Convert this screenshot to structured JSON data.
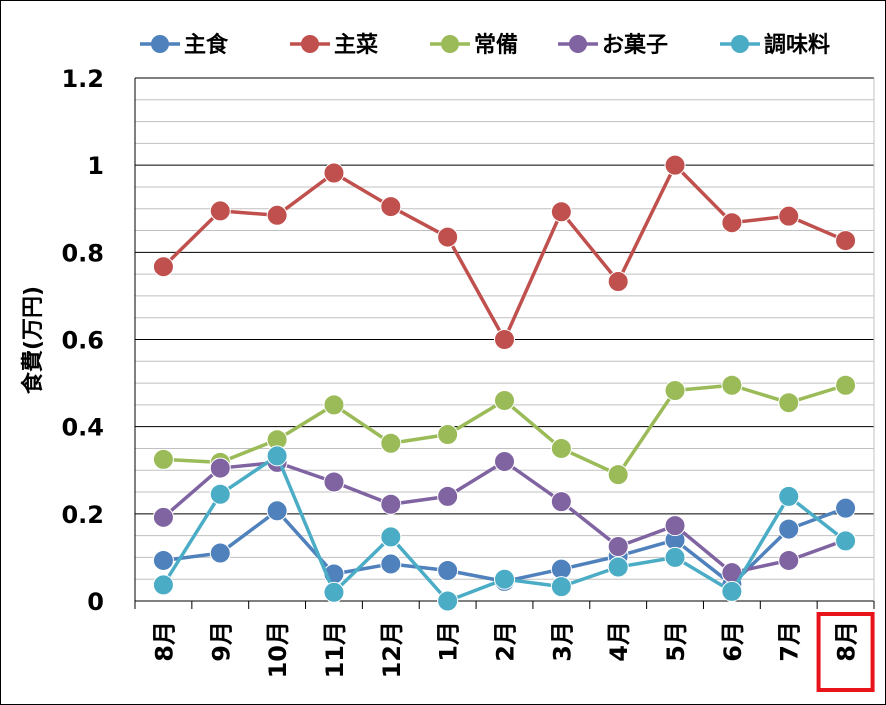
{
  "chart_data": {
    "type": "line",
    "title": "",
    "xlabel": "",
    "ylabel": "食費(万円)",
    "categories": [
      "8月",
      "9月",
      "10月",
      "11月",
      "12月",
      "1月",
      "2月",
      "3月",
      "4月",
      "5月",
      "6月",
      "7月",
      "8月"
    ],
    "ylim": [
      0,
      1.2
    ],
    "yticks": [
      "0",
      "0.2",
      "0.4",
      "0.6",
      "0.8",
      "1",
      "1.2"
    ],
    "grid": true,
    "legend_position": "top",
    "highlighted_category_index": 12,
    "highlight_color": "#e8141b",
    "series": [
      {
        "name": "主食",
        "color": "#4f81bd",
        "values": [
          0.093,
          0.11,
          0.207,
          0.062,
          0.085,
          0.07,
          0.045,
          0.073,
          0.103,
          0.14,
          0.038,
          0.165,
          0.213
        ]
      },
      {
        "name": "主菜",
        "color": "#c0504d",
        "values": [
          0.767,
          0.895,
          0.885,
          0.982,
          0.905,
          0.835,
          0.6,
          0.893,
          0.733,
          1.0,
          0.868,
          0.883,
          0.827
        ]
      },
      {
        "name": "常備",
        "color": "#9bbb59",
        "values": [
          0.325,
          0.318,
          0.37,
          0.45,
          0.362,
          0.382,
          0.46,
          0.35,
          0.29,
          0.483,
          0.495,
          0.455,
          0.495
        ]
      },
      {
        "name": "お菓子",
        "color": "#8064a2",
        "values": [
          0.192,
          0.305,
          0.318,
          0.273,
          0.222,
          0.24,
          0.32,
          0.228,
          0.125,
          0.173,
          0.065,
          0.093,
          0.14
        ]
      },
      {
        "name": "調味料",
        "color": "#4bacc6",
        "values": [
          0.037,
          0.245,
          0.333,
          0.02,
          0.147,
          0.0,
          0.05,
          0.033,
          0.078,
          0.1,
          0.022,
          0.24,
          0.138
        ]
      }
    ]
  }
}
